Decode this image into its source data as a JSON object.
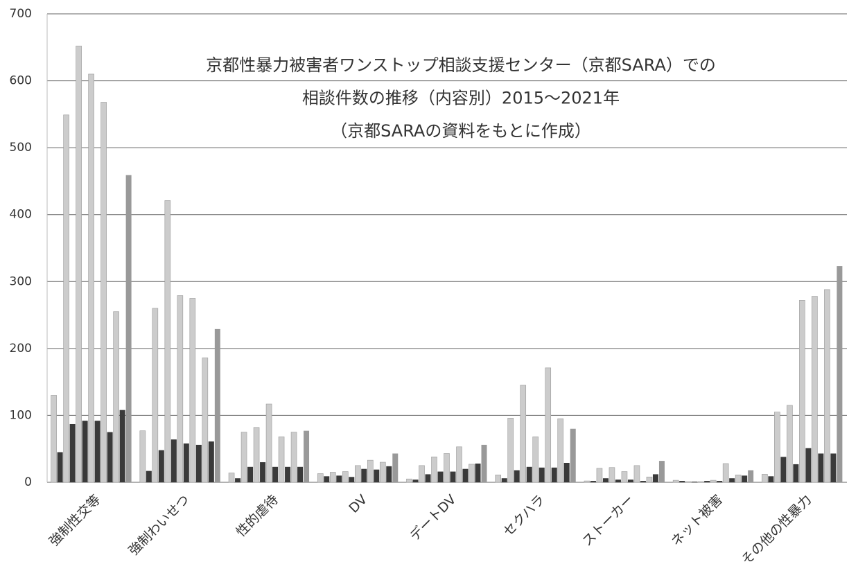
{
  "chart_data": {
    "type": "bar",
    "title": [
      "京都性暴力被害者ワンストップ相談支援センター（京都SARA）での",
      "相談件数の推移（内容別）2015〜2021年",
      "（京都SARAの資料をもとに作成）"
    ],
    "categories": [
      "強制性交等",
      "強制わいせつ",
      "性的虐待",
      "DV",
      "デートDV",
      "セクハラ",
      "ストーカー",
      "ネット被害",
      "その他の性暴力"
    ],
    "series": [
      {
        "color": "#cccccc",
        "values": [
          130,
          77,
          14,
          13,
          5,
          11,
          2,
          3,
          12
        ]
      },
      {
        "color": "#3a3a3a",
        "values": [
          45,
          17,
          6,
          9,
          4,
          6,
          2,
          2,
          9
        ]
      },
      {
        "color": "#cccccc",
        "values": [
          549,
          260,
          75,
          15,
          25,
          96,
          21,
          1,
          105
        ]
      },
      {
        "color": "#3a3a3a",
        "values": [
          87,
          48,
          23,
          10,
          12,
          18,
          6,
          1,
          38
        ]
      },
      {
        "color": "#cccccc",
        "values": [
          652,
          421,
          82,
          16,
          38,
          145,
          22,
          1,
          115
        ]
      },
      {
        "color": "#3a3a3a",
        "values": [
          92,
          64,
          30,
          8,
          16,
          23,
          4,
          2,
          27
        ]
      },
      {
        "color": "#cccccc",
        "values": [
          610,
          279,
          117,
          25,
          43,
          68,
          16,
          3,
          272
        ]
      },
      {
        "color": "#3a3a3a",
        "values": [
          92,
          58,
          23,
          20,
          16,
          22,
          4,
          2,
          51
        ]
      },
      {
        "color": "#cccccc",
        "values": [
          568,
          275,
          68,
          33,
          53,
          171,
          25,
          28,
          278
        ]
      },
      {
        "color": "#3a3a3a",
        "values": [
          75,
          56,
          23,
          19,
          20,
          22,
          2,
          6,
          43
        ]
      },
      {
        "color": "#cccccc",
        "values": [
          255,
          186,
          75,
          30,
          27,
          95,
          8,
          11,
          288
        ]
      },
      {
        "color": "#3a3a3a",
        "values": [
          108,
          61,
          23,
          24,
          28,
          29,
          12,
          10,
          43
        ]
      },
      {
        "color": "#999999",
        "values": [
          459,
          229,
          77,
          43,
          56,
          80,
          32,
          18,
          323
        ]
      }
    ],
    "ylim": [
      0,
      700
    ],
    "yticks": [
      0,
      100,
      200,
      300,
      400,
      500,
      600,
      700
    ],
    "grid": true
  }
}
